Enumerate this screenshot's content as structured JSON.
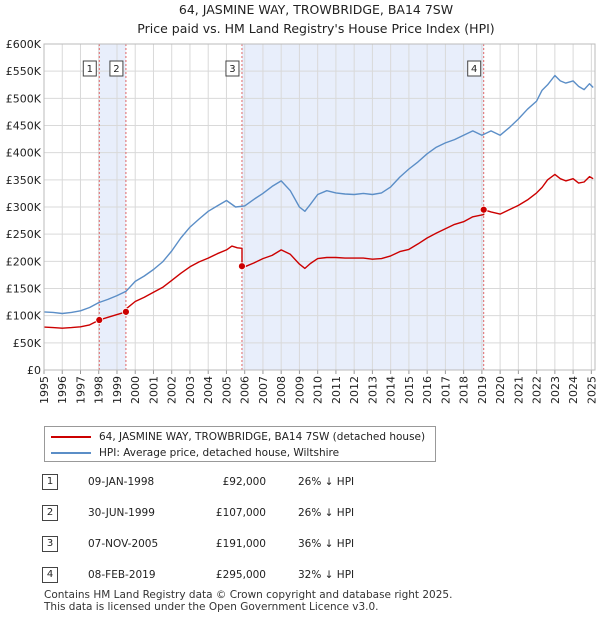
{
  "chart_data": {
    "type": "line",
    "title": "64, JASMINE WAY, TROWBRIDGE, BA14 7SW",
    "subtitle": "Price paid vs. HM Land Registry's House Price Index (HPI)",
    "xlim": [
      1995.0,
      2025.2
    ],
    "ylim": [
      0,
      600000
    ],
    "y_ticks": [
      {
        "value": 0,
        "label": "£0"
      },
      {
        "value": 50000,
        "label": "£50K"
      },
      {
        "value": 100000,
        "label": "£100K"
      },
      {
        "value": 150000,
        "label": "£150K"
      },
      {
        "value": 200000,
        "label": "£200K"
      },
      {
        "value": 250000,
        "label": "£250K"
      },
      {
        "value": 300000,
        "label": "£300K"
      },
      {
        "value": 350000,
        "label": "£350K"
      },
      {
        "value": 400000,
        "label": "£400K"
      },
      {
        "value": 450000,
        "label": "£450K"
      },
      {
        "value": 500000,
        "label": "£500K"
      },
      {
        "value": 550000,
        "label": "£550K"
      },
      {
        "value": 600000,
        "label": "£600K"
      }
    ],
    "x_ticks": [
      {
        "value": 1995,
        "label": "1995"
      },
      {
        "value": 1996,
        "label": "1996"
      },
      {
        "value": 1997,
        "label": "1997"
      },
      {
        "value": 1998,
        "label": "1998"
      },
      {
        "value": 1999,
        "label": "1999"
      },
      {
        "value": 2000,
        "label": "2000"
      },
      {
        "value": 2001,
        "label": "2001"
      },
      {
        "value": 2002,
        "label": "2002"
      },
      {
        "value": 2003,
        "label": "2003"
      },
      {
        "value": 2004,
        "label": "2004"
      },
      {
        "value": 2005,
        "label": "2005"
      },
      {
        "value": 2006,
        "label": "2006"
      },
      {
        "value": 2007,
        "label": "2007"
      },
      {
        "value": 2008,
        "label": "2008"
      },
      {
        "value": 2009,
        "label": "2009"
      },
      {
        "value": 2010,
        "label": "2010"
      },
      {
        "value": 2011,
        "label": "2011"
      },
      {
        "value": 2012,
        "label": "2012"
      },
      {
        "value": 2013,
        "label": "2013"
      },
      {
        "value": 2014,
        "label": "2014"
      },
      {
        "value": 2015,
        "label": "2015"
      },
      {
        "value": 2016,
        "label": "2016"
      },
      {
        "value": 2017,
        "label": "2017"
      },
      {
        "value": 2018,
        "label": "2018"
      },
      {
        "value": 2019,
        "label": "2019"
      },
      {
        "value": 2020,
        "label": "2020"
      },
      {
        "value": 2021,
        "label": "2021"
      },
      {
        "value": 2022,
        "label": "2022"
      },
      {
        "value": 2023,
        "label": "2023"
      },
      {
        "value": 2024,
        "label": "2024"
      },
      {
        "value": 2025,
        "label": "2025"
      }
    ],
    "shaded_periods": [
      [
        1998.03,
        1999.49
      ],
      [
        2005.85,
        2019.1
      ]
    ],
    "series": [
      {
        "name": "64, JASMINE WAY, TROWBRIDGE, BA14 7SW (detached house)",
        "color": "#cc0000",
        "x": [
          1995.0,
          1995.5,
          1996.0,
          1996.5,
          1997.0,
          1997.5,
          1998.03,
          1998.5,
          1999.0,
          1999.49,
          1999.49,
          2000.0,
          2000.5,
          2001.0,
          2001.5,
          2002.0,
          2002.5,
          2003.0,
          2003.5,
          2004.0,
          2004.5,
          2005.0,
          2005.3,
          2005.6,
          2005.85,
          2005.85,
          2006.0,
          2006.5,
          2007.0,
          2007.5,
          2008.0,
          2008.5,
          2009.0,
          2009.3,
          2009.6,
          2010.0,
          2010.5,
          2011.0,
          2011.5,
          2012.0,
          2012.5,
          2013.0,
          2013.5,
          2014.0,
          2014.5,
          2015.0,
          2015.5,
          2016.0,
          2016.5,
          2017.0,
          2017.5,
          2018.0,
          2018.5,
          2019.1,
          2019.1,
          2019.5,
          2020.0,
          2020.5,
          2021.0,
          2021.5,
          2022.0,
          2022.3,
          2022.6,
          2023.0,
          2023.3,
          2023.6,
          2024.0,
          2024.3,
          2024.6,
          2024.9,
          2025.1
        ],
        "values": [
          79000,
          78000,
          77000,
          78000,
          79500,
          83000,
          92000,
          97000,
          102000,
          107000,
          112000,
          126000,
          134000,
          143000,
          152000,
          165000,
          178000,
          190000,
          199000,
          206000,
          214000,
          221000,
          228000,
          225000,
          224000,
          191000,
          190000,
          197000,
          205000,
          211000,
          221000,
          213000,
          195000,
          187000,
          196000,
          205000,
          207000,
          207000,
          206000,
          206000,
          206000,
          204000,
          205000,
          210000,
          218000,
          222000,
          232000,
          243000,
          252000,
          260000,
          268000,
          273000,
          282000,
          286000,
          295000,
          291000,
          287000,
          295000,
          303000,
          313000,
          326000,
          336000,
          350000,
          360000,
          352000,
          348000,
          352000,
          344000,
          346000,
          356000,
          352000
        ]
      },
      {
        "name": "HPI: Average price, detached house, Wiltshire",
        "color": "#5b8ec7",
        "x": [
          1995.0,
          1995.5,
          1996.0,
          1996.5,
          1997.0,
          1997.5,
          1998.0,
          1998.5,
          1999.0,
          1999.5,
          2000.0,
          2000.5,
          2001.0,
          2001.5,
          2002.0,
          2002.5,
          2003.0,
          2003.5,
          2004.0,
          2004.5,
          2005.0,
          2005.5,
          2006.0,
          2006.5,
          2007.0,
          2007.5,
          2008.0,
          2008.5,
          2009.0,
          2009.3,
          2009.6,
          2010.0,
          2010.5,
          2011.0,
          2011.5,
          2012.0,
          2012.5,
          2013.0,
          2013.5,
          2014.0,
          2014.5,
          2015.0,
          2015.5,
          2016.0,
          2016.5,
          2017.0,
          2017.5,
          2018.0,
          2018.5,
          2019.0,
          2019.5,
          2020.0,
          2020.5,
          2021.0,
          2021.5,
          2022.0,
          2022.3,
          2022.6,
          2023.0,
          2023.3,
          2023.6,
          2024.0,
          2024.3,
          2024.6,
          2024.9,
          2025.1
        ],
        "values": [
          107000,
          106000,
          104000,
          106000,
          109000,
          115000,
          124000,
          130000,
          137000,
          145000,
          163000,
          173000,
          185000,
          199000,
          219000,
          243000,
          263000,
          278000,
          292000,
          302000,
          312000,
          300000,
          302000,
          314000,
          325000,
          338000,
          348000,
          330000,
          300000,
          292000,
          305000,
          323000,
          330000,
          326000,
          324000,
          323000,
          325000,
          323000,
          326000,
          337000,
          355000,
          370000,
          383000,
          398000,
          410000,
          418000,
          424000,
          432000,
          440000,
          432000,
          440000,
          432000,
          446000,
          462000,
          480000,
          495000,
          515000,
          525000,
          542000,
          532000,
          528000,
          532000,
          522000,
          516000,
          527000,
          520000
        ]
      }
    ],
    "sale_markers": [
      {
        "label": "1",
        "x": 1998.03,
        "y": 92000,
        "marker_line": 1998.03
      },
      {
        "label": "2",
        "x": 1999.49,
        "y": 107000,
        "marker_line": 1999.49
      },
      {
        "label": "3",
        "x": 2005.85,
        "y": 191000,
        "marker_line": 2005.85
      },
      {
        "label": "4",
        "x": 2019.1,
        "y": 295000,
        "marker_line": 2019.1
      }
    ]
  },
  "legend": {
    "items": [
      {
        "label": "64, JASMINE WAY, TROWBRIDGE, BA14 7SW (detached house)",
        "color": "#cc0000"
      },
      {
        "label": "HPI: Average price, detached house, Wiltshire",
        "color": "#5b8ec7"
      }
    ]
  },
  "sales": [
    {
      "num": "1",
      "date": "09-JAN-1998",
      "price": "£92,000",
      "hpi": "26% ↓ HPI"
    },
    {
      "num": "2",
      "date": "30-JUN-1999",
      "price": "£107,000",
      "hpi": "26% ↓ HPI"
    },
    {
      "num": "3",
      "date": "07-NOV-2005",
      "price": "£191,000",
      "hpi": "36% ↓ HPI"
    },
    {
      "num": "4",
      "date": "08-FEB-2019",
      "price": "£295,000",
      "hpi": "32% ↓ HPI"
    }
  ],
  "footer": {
    "line1": "Contains HM Land Registry data © Crown copyright and database right 2025.",
    "line2": "This data is licensed under the Open Government Licence v3.0."
  }
}
